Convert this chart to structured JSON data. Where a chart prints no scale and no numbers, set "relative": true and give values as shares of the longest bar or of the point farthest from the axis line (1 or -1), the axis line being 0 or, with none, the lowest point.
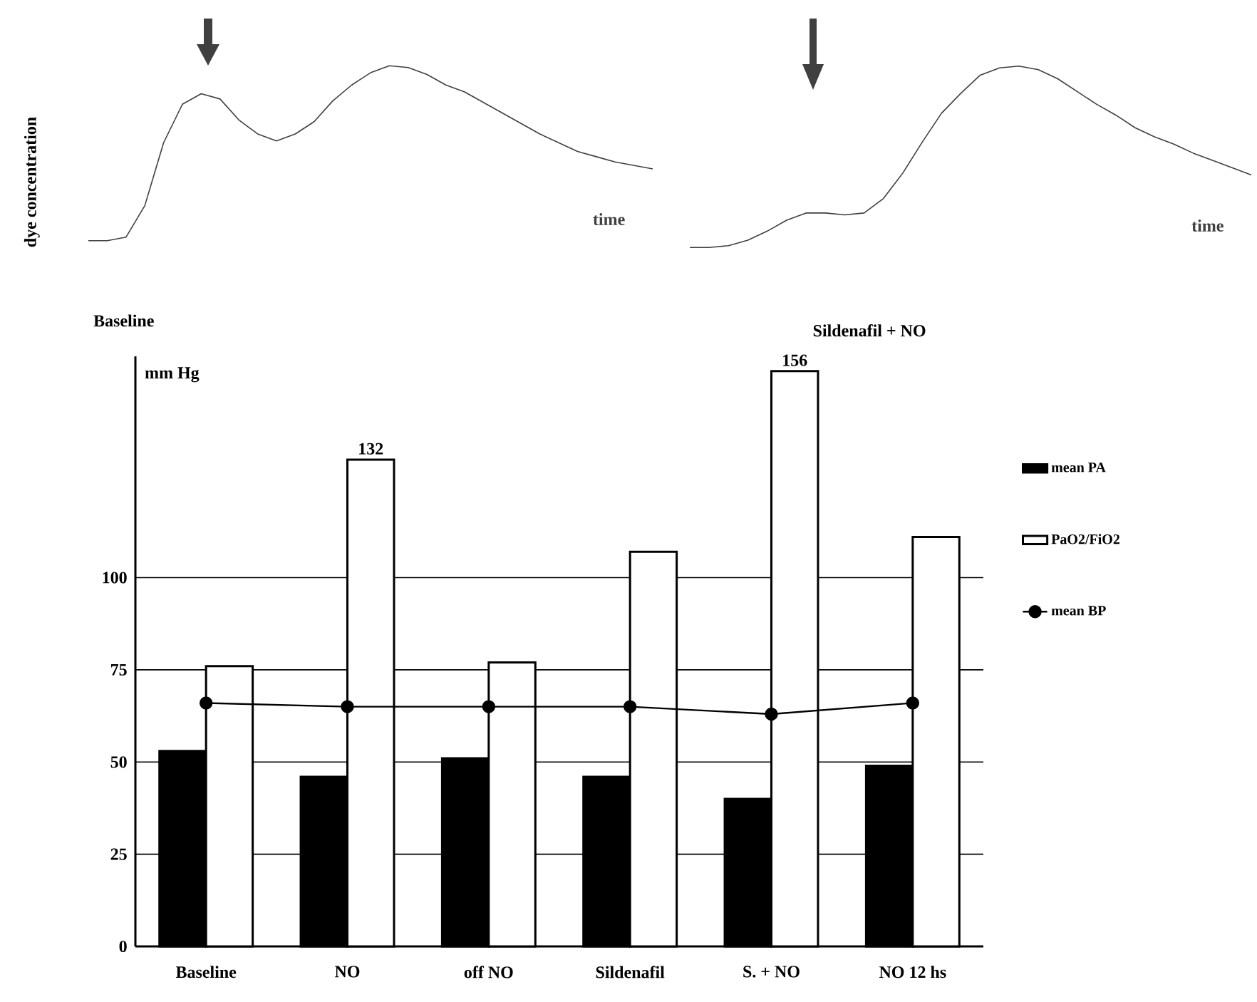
{
  "chart_data": [
    {
      "type": "line",
      "relative": true,
      "title": "Baseline",
      "ylabel": "dye concentration",
      "annotations": [
        "time"
      ],
      "categories": [
        null,
        null,
        null,
        null,
        null,
        null,
        null,
        null,
        null,
        null,
        null,
        null,
        null,
        null,
        null,
        null,
        null,
        null,
        null,
        null,
        null,
        null,
        null,
        null,
        null,
        null,
        null,
        null,
        null,
        null,
        null
      ],
      "series": [
        {
          "color": "#404040",
          "values": [
            0,
            0,
            0.02,
            0.2,
            0.56,
            0.78,
            0.84,
            0.81,
            0.69,
            0.61,
            0.57,
            0.61,
            0.68,
            0.8,
            0.89,
            0.96,
            1.0,
            0.99,
            0.95,
            0.89,
            0.85,
            0.79,
            0.73,
            0.67,
            0.61,
            0.56,
            0.51,
            0.48,
            0.45,
            0.43,
            0.41
          ]
        }
      ]
    },
    {
      "type": "line",
      "relative": true,
      "title": "Sildenafil + NO",
      "annotations": [
        "time"
      ],
      "categories": [
        null,
        null,
        null,
        null,
        null,
        null,
        null,
        null,
        null,
        null,
        null,
        null,
        null,
        null,
        null,
        null,
        null,
        null,
        null,
        null,
        null,
        null,
        null,
        null,
        null,
        null,
        null,
        null,
        null,
        null
      ],
      "series": [
        {
          "color": "#404040",
          "values": [
            0,
            0,
            0.01,
            0.04,
            0.09,
            0.15,
            0.19,
            0.19,
            0.18,
            0.19,
            0.27,
            0.41,
            0.58,
            0.74,
            0.85,
            0.95,
            0.99,
            1.0,
            0.98,
            0.93,
            0.86,
            0.79,
            0.73,
            0.66,
            0.61,
            0.57,
            0.52,
            0.48,
            0.44,
            0.4
          ]
        }
      ]
    },
    {
      "type": "bar",
      "ylabel": "mm Hg",
      "categories": [
        "Baseline",
        "NO",
        "off NO",
        "Sildenafil",
        "S. + NO",
        "NO 12 hs"
      ],
      "ylim": [
        0,
        160
      ],
      "yticks": [
        0,
        25,
        50,
        75,
        100
      ],
      "grid": "y",
      "legend": "right",
      "series": [
        {
          "name": "mean PA",
          "type": "bar",
          "color": "#000000",
          "values": [
            53,
            46,
            51,
            46,
            40,
            49
          ]
        },
        {
          "name": "PaO2/FiO2",
          "type": "bar",
          "color": "#ffffff",
          "values": [
            76,
            132,
            77,
            107,
            156,
            111
          ],
          "value_labels": [
            null,
            "132",
            null,
            null,
            "156",
            null
          ]
        },
        {
          "name": "mean BP",
          "type": "line",
          "color": "#000000",
          "marker": "circle",
          "values": [
            66,
            65,
            65,
            65,
            63,
            66
          ]
        }
      ]
    }
  ]
}
